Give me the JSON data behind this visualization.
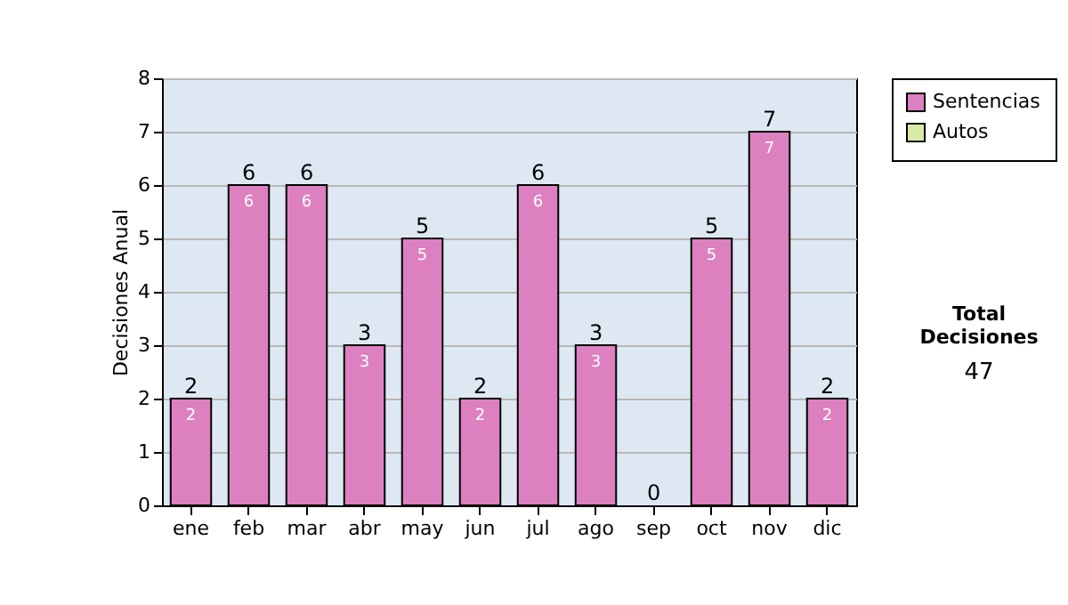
{
  "chart_data": {
    "type": "bar",
    "ylabel": "Decisiones Anual",
    "categories": [
      "ene",
      "feb",
      "mar",
      "abr",
      "may",
      "jun",
      "jul",
      "ago",
      "sep",
      "oct",
      "nov",
      "dic"
    ],
    "stacked": true,
    "series": [
      {
        "name": "Sentencias",
        "color": "#dd80c0",
        "values": [
          2,
          6,
          6,
          3,
          5,
          2,
          6,
          3,
          0,
          5,
          7,
          2
        ],
        "value_labels": [
          "2",
          "6",
          "6",
          "3",
          "5",
          "2",
          "6",
          "3",
          null,
          "5",
          "7",
          "2"
        ]
      },
      {
        "name": "Autos",
        "color": "#d8eaa8",
        "values": [
          0,
          0,
          0,
          0,
          0,
          0,
          0,
          0,
          0,
          0,
          0,
          0
        ]
      }
    ],
    "totals": [
      "2",
      "6",
      "6",
      "3",
      "5",
      "2",
      "6",
      "3",
      "0",
      "5",
      "7",
      "2"
    ],
    "ylim": [
      0,
      8
    ],
    "yticks": [
      0,
      1,
      2,
      3,
      4,
      5,
      6,
      7,
      8
    ],
    "grid": "y",
    "legend": "right",
    "annotations": [
      "Total Decisiones",
      "47"
    ]
  }
}
